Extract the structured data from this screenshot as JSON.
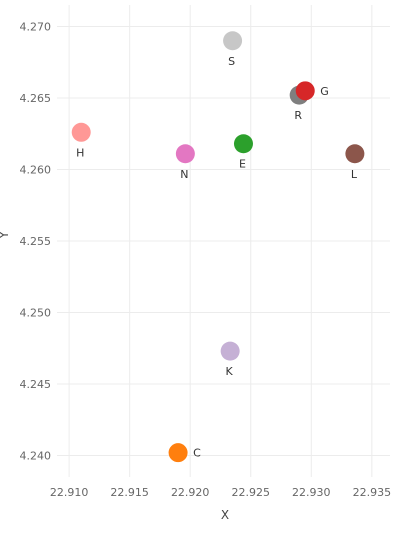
{
  "chart_data": {
    "type": "scatter",
    "xlabel": "X",
    "ylabel": "Y",
    "xlim": [
      22.909,
      22.9365
    ],
    "ylim": [
      4.2385,
      4.2715
    ],
    "grid": true,
    "x_ticks": [
      22.91,
      22.915,
      22.92,
      22.925,
      22.93,
      22.935
    ],
    "x_tick_labels": [
      "22.910",
      "22.915",
      "22.920",
      "22.925",
      "22.930",
      "22.935"
    ],
    "y_ticks": [
      4.24,
      4.245,
      4.25,
      4.255,
      4.26,
      4.265,
      4.27
    ],
    "y_tick_labels": [
      "4.240",
      "4.245",
      "4.250",
      "4.255",
      "4.260",
      "4.265",
      "4.270"
    ],
    "points": [
      {
        "label": "S",
        "x": 22.9235,
        "y": 4.269,
        "color": "#c7c7c7",
        "label_pos": "below"
      },
      {
        "label": "R",
        "x": 22.929,
        "y": 4.2652,
        "color": "#7f7f7f",
        "label_pos": "below"
      },
      {
        "label": "G",
        "x": 22.9295,
        "y": 4.2655,
        "color": "#d62728",
        "label_pos": "right"
      },
      {
        "label": "H",
        "x": 22.911,
        "y": 4.2626,
        "color": "#ff9896",
        "label_pos": "below"
      },
      {
        "label": "E",
        "x": 22.9244,
        "y": 4.2618,
        "color": "#2ca02c",
        "label_pos": "below"
      },
      {
        "label": "N",
        "x": 22.9196,
        "y": 4.2611,
        "color": "#e377c2",
        "label_pos": "below"
      },
      {
        "label": "L",
        "x": 22.9336,
        "y": 4.2611,
        "color": "#8c564b",
        "label_pos": "below"
      },
      {
        "label": "K",
        "x": 22.9233,
        "y": 4.2473,
        "color": "#c5b0d5",
        "label_pos": "below"
      },
      {
        "label": "C",
        "x": 22.919,
        "y": 4.2402,
        "color": "#ff7f0e",
        "label_pos": "right"
      }
    ]
  }
}
